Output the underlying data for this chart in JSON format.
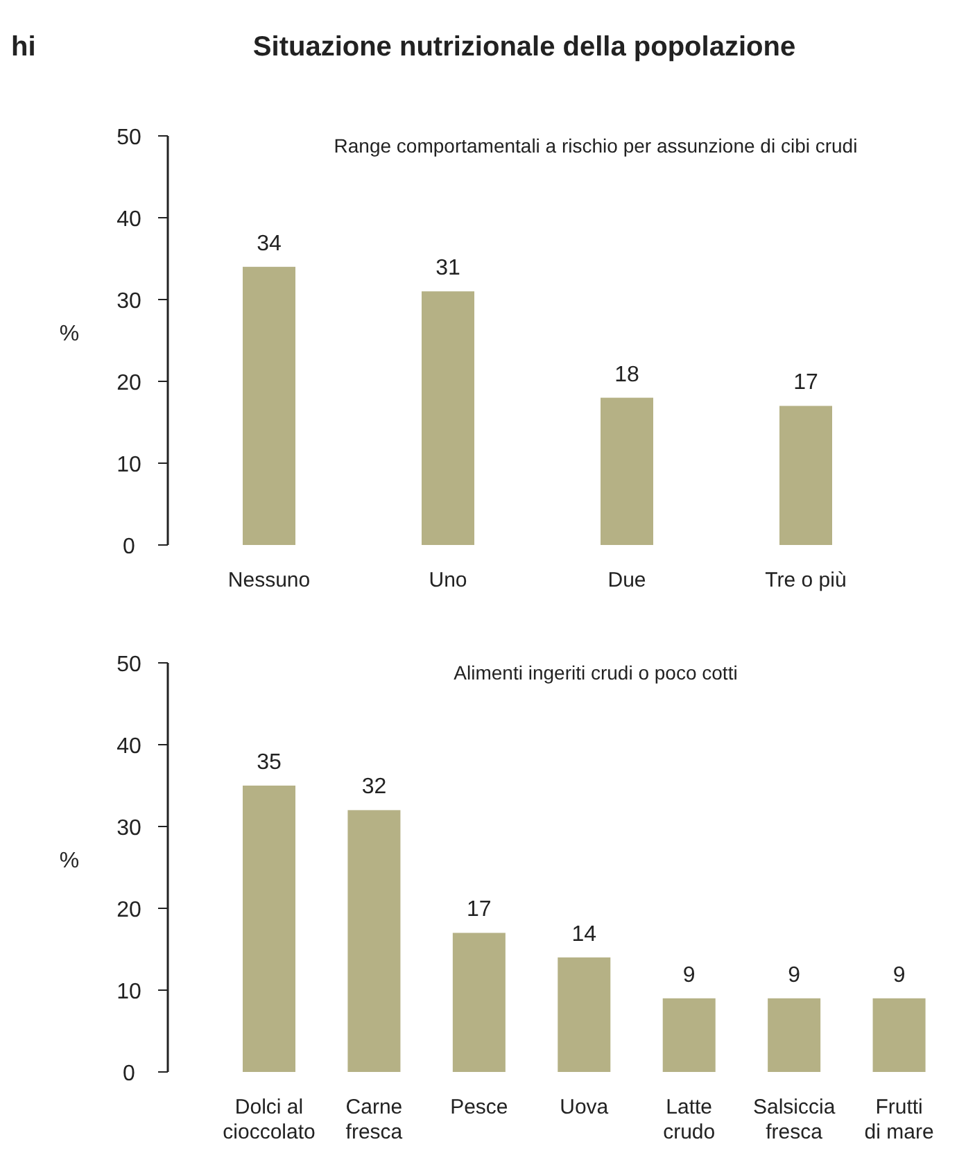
{
  "chart_data": [
    {
      "type": "bar",
      "title": "Situazione nutrizionale della popolazione",
      "subtitle": "Range comportamentali a rischio per assunzione di cibi crudi",
      "ylabel": "%",
      "annotations": [
        "hi"
      ],
      "categories": [
        "Nessuno",
        "Uno",
        "Due",
        "Tre o più"
      ],
      "values": [
        34,
        31,
        18,
        17
      ],
      "color": "#b5b185",
      "ylim": [
        0,
        50
      ],
      "yticks": [
        0,
        10,
        20,
        30,
        40,
        50
      ],
      "data_labels": true
    },
    {
      "type": "bar",
      "subtitle": "Alimenti ingeriti crudi o poco cotti",
      "ylabel": "%",
      "categories": [
        "Dolci al cioccolato",
        "Carne fresca",
        "Pesce",
        "Uova",
        "Latte crudo",
        "Salsiccia fresca",
        "Frutti di mare"
      ],
      "values": [
        35,
        32,
        17,
        14,
        9,
        9,
        9
      ],
      "color": "#b5b185",
      "ylim": [
        0,
        50
      ],
      "yticks": [
        0,
        10,
        20,
        30,
        40,
        50
      ],
      "data_labels": true
    }
  ]
}
